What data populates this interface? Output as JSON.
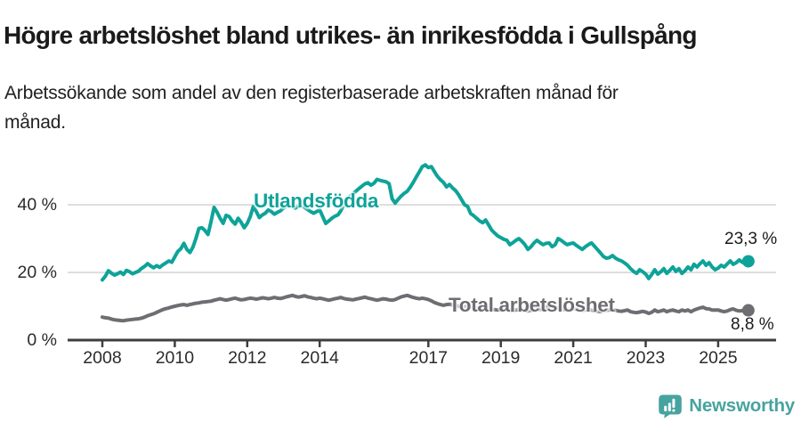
{
  "header": {
    "title": "Högre arbetslöshet bland utrikes- än inrikesfödda i Gullspång",
    "subtitle": "Arbetssökande som andel av den registerbaserade arbetskraften månad för månad."
  },
  "footer": {
    "brand": "Newsworthy",
    "brand_color": "#47a3a0",
    "logo_icon": "newsworthy-bubble-barchart-icon"
  },
  "colors": {
    "background": "#ffffff",
    "title_text": "#1a1a1a",
    "axis": "#3e3e3e",
    "grid": "#dedede",
    "tick_text": "#2b2b2b",
    "series_foreign_born": "#0ea399",
    "series_total": "#6d6d72",
    "end_label_text": "#1a1a1a"
  },
  "chart_data": {
    "type": "line",
    "unit": "%",
    "frequency": "monthly",
    "x_start_year": 2008,
    "x_end_label_period": "2025",
    "ylim": [
      0,
      52
    ],
    "xlim_years": [
      2007.5,
      2026.6
    ],
    "grid": "horizontal",
    "legend_position": "inline-labels",
    "y_ticks": [
      {
        "value": 0,
        "label": "0 %"
      },
      {
        "value": 20,
        "label": "20 %"
      },
      {
        "value": 40,
        "label": "40 %"
      }
    ],
    "x_ticks": [
      {
        "value": 2008,
        "label": "2008"
      },
      {
        "value": 2010,
        "label": "2010"
      },
      {
        "value": 2012,
        "label": "2012"
      },
      {
        "value": 2014,
        "label": "2014"
      },
      {
        "value": 2017,
        "label": "2017"
      },
      {
        "value": 2019,
        "label": "2019"
      },
      {
        "value": 2021,
        "label": "2021"
      },
      {
        "value": 2023,
        "label": "2023"
      },
      {
        "value": 2025,
        "label": "2025"
      }
    ],
    "series": [
      {
        "name": "Utlandsfödda",
        "color": "#0ea399",
        "end_label": "23,3 %",
        "end_value": 23.3,
        "values": [
          17.8,
          18.9,
          20.5,
          19.8,
          19.2,
          19.6,
          20.1,
          19.4,
          20.6,
          20.2,
          19.6,
          20.0,
          20.4,
          21.2,
          21.8,
          22.6,
          21.9,
          21.4,
          22.0,
          21.5,
          22.2,
          22.8,
          23.4,
          23.0,
          24.6,
          26.2,
          27.0,
          28.6,
          26.8,
          25.9,
          27.5,
          30.0,
          33.0,
          33.2,
          32.4,
          31.2,
          35.0,
          39.2,
          37.8,
          36.0,
          34.5,
          36.9,
          36.5,
          35.2,
          34.3,
          36.0,
          34.8,
          33.2,
          34.5,
          36.5,
          39.5,
          38.0,
          36.2,
          37.0,
          37.5,
          38.5,
          38.0,
          37.2,
          37.8,
          38.2,
          39.0,
          39.6,
          40.2,
          39.5,
          39.0,
          39.8,
          40.0,
          39.2,
          38.6,
          38.0,
          37.5,
          38.0,
          38.5,
          36.5,
          34.5,
          35.2,
          36.0,
          36.6,
          37.0,
          38.2,
          40.0,
          41.2,
          42.5,
          43.2,
          44.0,
          44.8,
          45.5,
          46.2,
          46.5,
          45.8,
          46.4,
          47.5,
          47.2,
          47.0,
          46.8,
          46.2,
          41.8,
          40.5,
          41.6,
          42.6,
          43.4,
          44.0,
          45.2,
          46.6,
          48.2,
          49.7,
          51.3,
          51.8,
          51.0,
          51.3,
          49.8,
          48.4,
          47.4,
          46.6,
          45.3,
          46.0,
          45.0,
          44.2,
          43.0,
          41.5,
          40.0,
          39.5,
          37.4,
          36.8,
          36.0,
          35.2,
          34.7,
          35.5,
          34.0,
          32.5,
          31.6,
          30.8,
          30.3,
          29.8,
          29.5,
          28.2,
          28.8,
          29.5,
          30.0,
          29.2,
          28.2,
          26.8,
          27.6,
          28.7,
          29.5,
          28.8,
          28.2,
          28.6,
          28.7,
          27.6,
          28.2,
          30.0,
          29.5,
          28.8,
          28.2,
          28.5,
          28.7,
          28.0,
          27.4,
          26.8,
          27.6,
          28.2,
          28.7,
          27.8,
          26.8,
          25.8,
          24.7,
          24.2,
          24.4,
          25.0,
          24.2,
          23.7,
          23.4,
          22.8,
          22.1,
          21.1,
          20.3,
          19.7,
          20.8,
          20.2,
          19.5,
          18.2,
          19.4,
          20.8,
          19.5,
          20.2,
          21.1,
          19.7,
          20.6,
          21.6,
          20.3,
          21.1,
          19.7,
          20.5,
          21.6,
          20.8,
          22.4,
          21.6,
          22.6,
          23.4,
          22.1,
          22.9,
          21.6,
          20.8,
          21.3,
          22.1,
          21.6,
          22.5,
          23.4,
          22.4,
          22.9,
          23.7,
          23.0,
          22.8,
          23.3
        ]
      },
      {
        "name": "Total arbetslöshet",
        "color": "#6d6d72",
        "end_label": "8,8 %",
        "end_value": 8.8,
        "values": [
          6.8,
          6.6,
          6.5,
          6.2,
          6.0,
          5.9,
          5.8,
          5.7,
          5.9,
          6.0,
          6.1,
          6.2,
          6.3,
          6.5,
          6.8,
          7.2,
          7.5,
          7.8,
          8.2,
          8.6,
          9.0,
          9.3,
          9.5,
          9.8,
          10.0,
          10.2,
          10.4,
          10.5,
          10.3,
          10.5,
          10.7,
          10.9,
          11.0,
          11.2,
          11.3,
          11.4,
          11.5,
          11.8,
          12.0,
          12.2,
          12.0,
          11.8,
          12.0,
          12.2,
          12.4,
          12.1,
          11.9,
          12.0,
          12.2,
          12.4,
          12.3,
          12.1,
          12.3,
          12.5,
          12.4,
          12.2,
          12.4,
          12.6,
          12.4,
          12.3,
          12.5,
          12.8,
          13.0,
          13.2,
          12.9,
          12.7,
          12.9,
          13.1,
          12.8,
          12.6,
          12.4,
          12.2,
          12.4,
          12.2,
          12.0,
          11.8,
          12.0,
          12.2,
          12.4,
          12.6,
          12.3,
          12.1,
          12.0,
          11.9,
          12.1,
          12.3,
          12.5,
          12.7,
          12.4,
          12.2,
          12.0,
          11.8,
          12.0,
          12.2,
          12.1,
          11.9,
          11.8,
          12.0,
          12.4,
          12.8,
          13.0,
          13.2,
          12.9,
          12.6,
          12.4,
          12.2,
          12.4,
          12.2,
          12.0,
          11.6,
          11.1,
          10.8,
          10.5,
          10.3,
          10.5,
          10.6,
          10.4,
          10.2,
          10.0,
          9.8,
          9.9,
          10.1,
          9.8,
          9.6,
          9.4,
          9.2,
          9.4,
          9.6,
          9.3,
          9.1,
          9.0,
          8.9,
          9.0,
          9.2,
          9.0,
          8.8,
          8.7,
          8.9,
          9.1,
          8.9,
          8.7,
          8.6,
          8.8,
          9.0,
          9.2,
          9.0,
          9.4,
          9.8,
          10.0,
          9.8,
          9.6,
          9.4,
          9.2,
          9.0,
          8.9,
          9.1,
          9.3,
          9.1,
          8.9,
          8.7,
          8.9,
          9.1,
          8.9,
          8.7,
          8.5,
          8.4,
          8.6,
          8.8,
          8.9,
          9.0,
          8.8,
          8.6,
          8.5,
          8.7,
          8.9,
          8.4,
          8.2,
          8.1,
          8.3,
          8.5,
          8.3,
          7.9,
          8.2,
          8.9,
          8.4,
          8.6,
          8.9,
          8.4,
          8.7,
          8.9,
          8.6,
          8.4,
          8.9,
          8.6,
          8.9,
          8.4,
          8.9,
          9.2,
          9.5,
          9.7,
          9.3,
          9.2,
          8.9,
          8.9,
          8.9,
          8.6,
          8.4,
          8.6,
          9.0,
          9.2,
          8.8,
          8.6,
          8.7,
          8.5,
          8.8
        ]
      }
    ]
  }
}
